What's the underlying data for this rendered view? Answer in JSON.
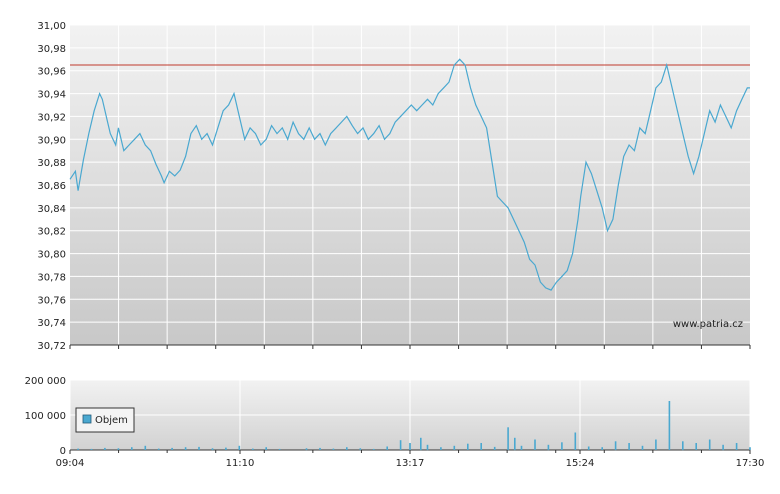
{
  "chart_data": [
    {
      "type": "line",
      "title": "",
      "ylim": [
        30.72,
        31.0
      ],
      "yticks": [
        "31,00",
        "30,98",
        "30,96",
        "30,94",
        "30,92",
        "30,90",
        "30,88",
        "30,86",
        "30,84",
        "30,82",
        "30,80",
        "30,78",
        "30,76",
        "30,74",
        "30,72"
      ],
      "xlim": [
        "09:04",
        "17:30"
      ],
      "reference_line": 30.965,
      "watermark": "www.patria.cz",
      "colors": {
        "line": "#4aa8d0",
        "reference": "#c0392b",
        "grid": "#ffffff",
        "bg_top": "#f2f2f2",
        "bg_bottom": "#c9c9c9"
      },
      "series": [
        {
          "values": [
            [
              "09:04",
              30.865
            ],
            [
              "09:08",
              30.872
            ],
            [
              "09:10",
              30.855
            ],
            [
              "09:14",
              30.882
            ],
            [
              "09:18",
              30.905
            ],
            [
              "09:22",
              30.925
            ],
            [
              "09:26",
              30.94
            ],
            [
              "09:28",
              30.935
            ],
            [
              "09:32",
              30.915
            ],
            [
              "09:34",
              30.905
            ],
            [
              "09:38",
              30.895
            ],
            [
              "09:40",
              30.91
            ],
            [
              "09:44",
              30.89
            ],
            [
              "09:48",
              30.895
            ],
            [
              "09:52",
              30.9
            ],
            [
              "09:56",
              30.905
            ],
            [
              "10:00",
              30.895
            ],
            [
              "10:04",
              30.89
            ],
            [
              "10:08",
              30.878
            ],
            [
              "10:12",
              30.868
            ],
            [
              "10:14",
              30.862
            ],
            [
              "10:18",
              30.872
            ],
            [
              "10:22",
              30.868
            ],
            [
              "10:26",
              30.873
            ],
            [
              "10:30",
              30.885
            ],
            [
              "10:34",
              30.905
            ],
            [
              "10:38",
              30.912
            ],
            [
              "10:42",
              30.9
            ],
            [
              "10:46",
              30.905
            ],
            [
              "10:50",
              30.895
            ],
            [
              "10:54",
              30.91
            ],
            [
              "10:58",
              30.925
            ],
            [
              "11:02",
              30.93
            ],
            [
              "11:06",
              30.94
            ],
            [
              "11:10",
              30.92
            ],
            [
              "11:14",
              30.9
            ],
            [
              "11:18",
              30.91
            ],
            [
              "11:22",
              30.905
            ],
            [
              "11:26",
              30.895
            ],
            [
              "11:30",
              30.9
            ],
            [
              "11:34",
              30.912
            ],
            [
              "11:38",
              30.905
            ],
            [
              "11:42",
              30.91
            ],
            [
              "11:46",
              30.9
            ],
            [
              "11:50",
              30.915
            ],
            [
              "11:54",
              30.905
            ],
            [
              "11:58",
              30.9
            ],
            [
              "12:02",
              30.91
            ],
            [
              "12:06",
              30.9
            ],
            [
              "12:10",
              30.905
            ],
            [
              "12:14",
              30.895
            ],
            [
              "12:18",
              30.905
            ],
            [
              "12:22",
              30.91
            ],
            [
              "12:26",
              30.915
            ],
            [
              "12:30",
              30.92
            ],
            [
              "12:34",
              30.912
            ],
            [
              "12:38",
              30.905
            ],
            [
              "12:42",
              30.91
            ],
            [
              "12:46",
              30.9
            ],
            [
              "12:50",
              30.905
            ],
            [
              "12:54",
              30.912
            ],
            [
              "12:58",
              30.9
            ],
            [
              "13:02",
              30.905
            ],
            [
              "13:06",
              30.915
            ],
            [
              "13:10",
              30.92
            ],
            [
              "13:14",
              30.925
            ],
            [
              "13:18",
              30.93
            ],
            [
              "13:22",
              30.925
            ],
            [
              "13:26",
              30.93
            ],
            [
              "13:30",
              30.935
            ],
            [
              "13:34",
              30.93
            ],
            [
              "13:38",
              30.94
            ],
            [
              "13:42",
              30.945
            ],
            [
              "13:46",
              30.95
            ],
            [
              "13:50",
              30.965
            ],
            [
              "13:54",
              30.97
            ],
            [
              "13:58",
              30.965
            ],
            [
              "14:02",
              30.945
            ],
            [
              "14:06",
              30.93
            ],
            [
              "14:10",
              30.92
            ],
            [
              "14:14",
              30.91
            ],
            [
              "14:18",
              30.88
            ],
            [
              "14:22",
              30.85
            ],
            [
              "14:26",
              30.845
            ],
            [
              "14:30",
              30.84
            ],
            [
              "14:34",
              30.83
            ],
            [
              "14:38",
              30.82
            ],
            [
              "14:42",
              30.81
            ],
            [
              "14:46",
              30.795
            ],
            [
              "14:50",
              30.79
            ],
            [
              "14:54",
              30.775
            ],
            [
              "14:58",
              30.77
            ],
            [
              "15:02",
              30.768
            ],
            [
              "15:06",
              30.775
            ],
            [
              "15:10",
              30.78
            ],
            [
              "15:14",
              30.785
            ],
            [
              "15:18",
              30.8
            ],
            [
              "15:22",
              30.83
            ],
            [
              "15:24",
              30.85
            ],
            [
              "15:28",
              30.88
            ],
            [
              "15:32",
              30.87
            ],
            [
              "15:36",
              30.855
            ],
            [
              "15:40",
              30.84
            ],
            [
              "15:44",
              30.82
            ],
            [
              "15:48",
              30.83
            ],
            [
              "15:52",
              30.86
            ],
            [
              "15:56",
              30.885
            ],
            [
              "16:00",
              30.895
            ],
            [
              "16:04",
              30.89
            ],
            [
              "16:08",
              30.91
            ],
            [
              "16:12",
              30.905
            ],
            [
              "16:16",
              30.925
            ],
            [
              "16:20",
              30.945
            ],
            [
              "16:24",
              30.95
            ],
            [
              "16:28",
              30.965
            ],
            [
              "16:32",
              30.945
            ],
            [
              "16:36",
              30.925
            ],
            [
              "16:40",
              30.905
            ],
            [
              "16:44",
              30.885
            ],
            [
              "16:48",
              30.87
            ],
            [
              "16:52",
              30.885
            ],
            [
              "16:56",
              30.905
            ],
            [
              "17:00",
              30.925
            ],
            [
              "17:04",
              30.915
            ],
            [
              "17:08",
              30.93
            ],
            [
              "17:12",
              30.92
            ],
            [
              "17:16",
              30.91
            ],
            [
              "17:20",
              30.925
            ],
            [
              "17:24",
              30.935
            ],
            [
              "17:28",
              30.945
            ],
            [
              "17:30",
              30.945
            ]
          ]
        }
      ]
    },
    {
      "type": "bar",
      "title": "",
      "ylim": [
        0,
        200000
      ],
      "yticks": [
        "200 000",
        "100 000",
        "0"
      ],
      "xticks": [
        "09:04",
        "11:10",
        "13:17",
        "15:24",
        "17:30"
      ],
      "legend": {
        "label": "Objem",
        "placement": "left"
      },
      "colors": {
        "bar": "#4aa8d0"
      },
      "series": [
        {
          "name": "Objem",
          "values": [
            [
              "09:10",
              4000
            ],
            [
              "09:20",
              3000
            ],
            [
              "09:30",
              6000
            ],
            [
              "09:40",
              5000
            ],
            [
              "09:50",
              8000
            ],
            [
              "10:00",
              12000
            ],
            [
              "10:10",
              4000
            ],
            [
              "10:20",
              6000
            ],
            [
              "10:30",
              8000
            ],
            [
              "10:40",
              9000
            ],
            [
              "10:50",
              5000
            ],
            [
              "11:00",
              7000
            ],
            [
              "11:10",
              12000
            ],
            [
              "11:20",
              4000
            ],
            [
              "11:30",
              8000
            ],
            [
              "11:40",
              3000
            ],
            [
              "12:00",
              5000
            ],
            [
              "12:10",
              6000
            ],
            [
              "12:20",
              4000
            ],
            [
              "12:30",
              8000
            ],
            [
              "12:40",
              5000
            ],
            [
              "12:50",
              3000
            ],
            [
              "13:00",
              10000
            ],
            [
              "13:10",
              28000
            ],
            [
              "13:17",
              20000
            ],
            [
              "13:25",
              35000
            ],
            [
              "13:30",
              15000
            ],
            [
              "13:40",
              8000
            ],
            [
              "13:50",
              12000
            ],
            [
              "14:00",
              18000
            ],
            [
              "14:10",
              20000
            ],
            [
              "14:20",
              9000
            ],
            [
              "14:30",
              65000
            ],
            [
              "14:35",
              35000
            ],
            [
              "14:40",
              12000
            ],
            [
              "14:50",
              30000
            ],
            [
              "15:00",
              15000
            ],
            [
              "15:10",
              22000
            ],
            [
              "15:20",
              50000
            ],
            [
              "15:30",
              10000
            ],
            [
              "15:40",
              8000
            ],
            [
              "15:50",
              25000
            ],
            [
              "16:00",
              20000
            ],
            [
              "16:10",
              12000
            ],
            [
              "16:20",
              30000
            ],
            [
              "16:30",
              140000
            ],
            [
              "16:40",
              25000
            ],
            [
              "16:50",
              20000
            ],
            [
              "17:00",
              30000
            ],
            [
              "17:10",
              15000
            ],
            [
              "17:20",
              20000
            ],
            [
              "17:30",
              8000
            ]
          ]
        }
      ]
    }
  ]
}
